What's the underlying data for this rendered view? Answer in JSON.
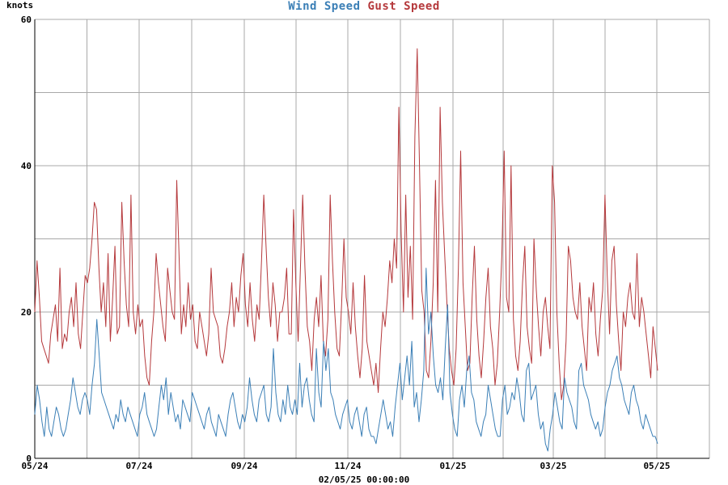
{
  "title": {
    "wind_label": "Wind Speed",
    "gust_label": "Gust Speed"
  },
  "y_unit": "knots",
  "footer_timestamp": "02/05/25 00:00:00",
  "colors": {
    "wind": "#3b7fb6",
    "gust": "#b5393c",
    "grid": "#a8a8a8",
    "axis": "#000000"
  },
  "chart_data": {
    "type": "line",
    "ylabel": "knots",
    "ylim": [
      0,
      60
    ],
    "y_ticks": [
      0,
      20,
      40,
      60
    ],
    "x_ticks": [
      "05/24",
      "07/24",
      "09/24",
      "11/24",
      "01/25",
      "03/25",
      "05/25"
    ],
    "grid": true,
    "series": [
      {
        "name": "Wind Speed",
        "color": "#3b7fb6",
        "values": [
          6,
          10,
          8,
          5,
          3,
          7,
          4,
          3,
          5,
          7,
          6,
          4,
          3,
          4,
          6,
          8,
          11,
          9,
          7,
          6,
          8,
          9,
          8,
          6,
          10,
          13,
          19,
          14,
          9,
          8,
          7,
          6,
          5,
          4,
          6,
          5,
          8,
          6,
          5,
          7,
          6,
          5,
          4,
          3,
          6,
          7,
          9,
          6,
          5,
          4,
          3,
          4,
          7,
          10,
          8,
          11,
          6,
          9,
          7,
          5,
          6,
          4,
          8,
          7,
          6,
          5,
          9,
          8,
          7,
          6,
          5,
          4,
          6,
          7,
          5,
          4,
          3,
          6,
          5,
          4,
          3,
          6,
          8,
          9,
          7,
          5,
          4,
          6,
          5,
          7,
          11,
          8,
          6,
          5,
          8,
          9,
          10,
          6,
          5,
          7,
          15,
          9,
          6,
          5,
          8,
          6,
          10,
          7,
          6,
          8,
          6,
          13,
          7,
          10,
          11,
          8,
          6,
          5,
          15,
          9,
          7,
          16,
          12,
          15,
          9,
          8,
          6,
          5,
          4,
          6,
          7,
          8,
          5,
          4,
          6,
          7,
          5,
          3,
          6,
          7,
          4,
          3,
          3,
          2,
          4,
          6,
          8,
          6,
          4,
          5,
          3,
          7,
          10,
          13,
          8,
          11,
          14,
          10,
          16,
          7,
          9,
          5,
          8,
          12,
          26,
          17,
          20,
          14,
          10,
          9,
          11,
          8,
          15,
          21,
          9,
          6,
          4,
          3,
          8,
          10,
          7,
          12,
          14,
          9,
          8,
          5,
          4,
          3,
          5,
          6,
          10,
          8,
          6,
          4,
          3,
          3,
          8,
          10,
          6,
          7,
          9,
          8,
          11,
          9,
          6,
          5,
          12,
          13,
          8,
          9,
          10,
          6,
          4,
          5,
          2,
          1,
          4,
          6,
          9,
          7,
          5,
          4,
          11,
          9,
          8,
          7,
          5,
          4,
          12,
          13,
          10,
          9,
          8,
          6,
          5,
          4,
          5,
          3,
          4,
          7,
          9,
          10,
          12,
          13,
          14,
          11,
          10,
          8,
          7,
          6,
          9,
          10,
          8,
          7,
          5,
          4,
          6,
          5,
          4,
          3,
          3,
          2
        ]
      },
      {
        "name": "Gust Speed",
        "color": "#b5393c",
        "values": [
          20,
          27,
          22,
          16,
          15,
          14,
          13,
          17,
          19,
          21,
          16,
          26,
          15,
          17,
          16,
          20,
          22,
          18,
          24,
          17,
          15,
          20,
          25,
          24,
          26,
          30,
          35,
          34,
          26,
          20,
          24,
          18,
          28,
          16,
          22,
          29,
          17,
          18,
          35,
          27,
          21,
          18,
          36,
          20,
          17,
          21,
          18,
          19,
          14,
          11,
          10,
          16,
          20,
          28,
          24,
          21,
          18,
          16,
          26,
          23,
          20,
          19,
          38,
          28,
          17,
          21,
          18,
          24,
          19,
          21,
          16,
          15,
          20,
          18,
          16,
          14,
          17,
          26,
          20,
          19,
          18,
          14,
          13,
          15,
          18,
          20,
          24,
          18,
          22,
          20,
          25,
          28,
          21,
          18,
          24,
          19,
          16,
          21,
          19,
          27,
          36,
          29,
          22,
          18,
          24,
          21,
          16,
          20,
          20,
          22,
          26,
          17,
          17,
          34,
          24,
          16,
          26,
          36,
          26,
          18,
          16,
          12,
          19,
          22,
          18,
          25,
          16,
          14,
          19,
          36,
          27,
          20,
          15,
          14,
          21,
          30,
          22,
          20,
          17,
          24,
          18,
          14,
          11,
          15,
          25,
          16,
          14,
          12,
          10,
          13,
          9,
          15,
          20,
          18,
          22,
          27,
          24,
          30,
          26,
          48,
          31,
          20,
          36,
          22,
          29,
          19,
          44,
          56,
          40,
          23,
          20,
          12,
          11,
          16,
          24,
          38,
          20,
          48,
          35,
          28,
          21,
          15,
          12,
          10,
          15,
          26,
          42,
          24,
          18,
          12,
          13,
          22,
          29,
          19,
          14,
          11,
          16,
          22,
          26,
          18,
          15,
          10,
          13,
          20,
          28,
          42,
          22,
          20,
          40,
          19,
          14,
          12,
          16,
          24,
          29,
          18,
          15,
          13,
          30,
          23,
          18,
          14,
          20,
          22,
          18,
          15,
          40,
          35,
          20,
          13,
          8,
          10,
          16,
          29,
          27,
          22,
          20,
          19,
          24,
          18,
          15,
          12,
          22,
          20,
          24,
          17,
          14,
          19,
          23,
          36,
          25,
          17,
          27,
          29,
          21,
          16,
          12,
          20,
          18,
          22,
          24,
          20,
          19,
          28,
          18,
          22,
          20,
          17,
          14,
          11,
          18,
          15,
          12
        ]
      }
    ]
  }
}
